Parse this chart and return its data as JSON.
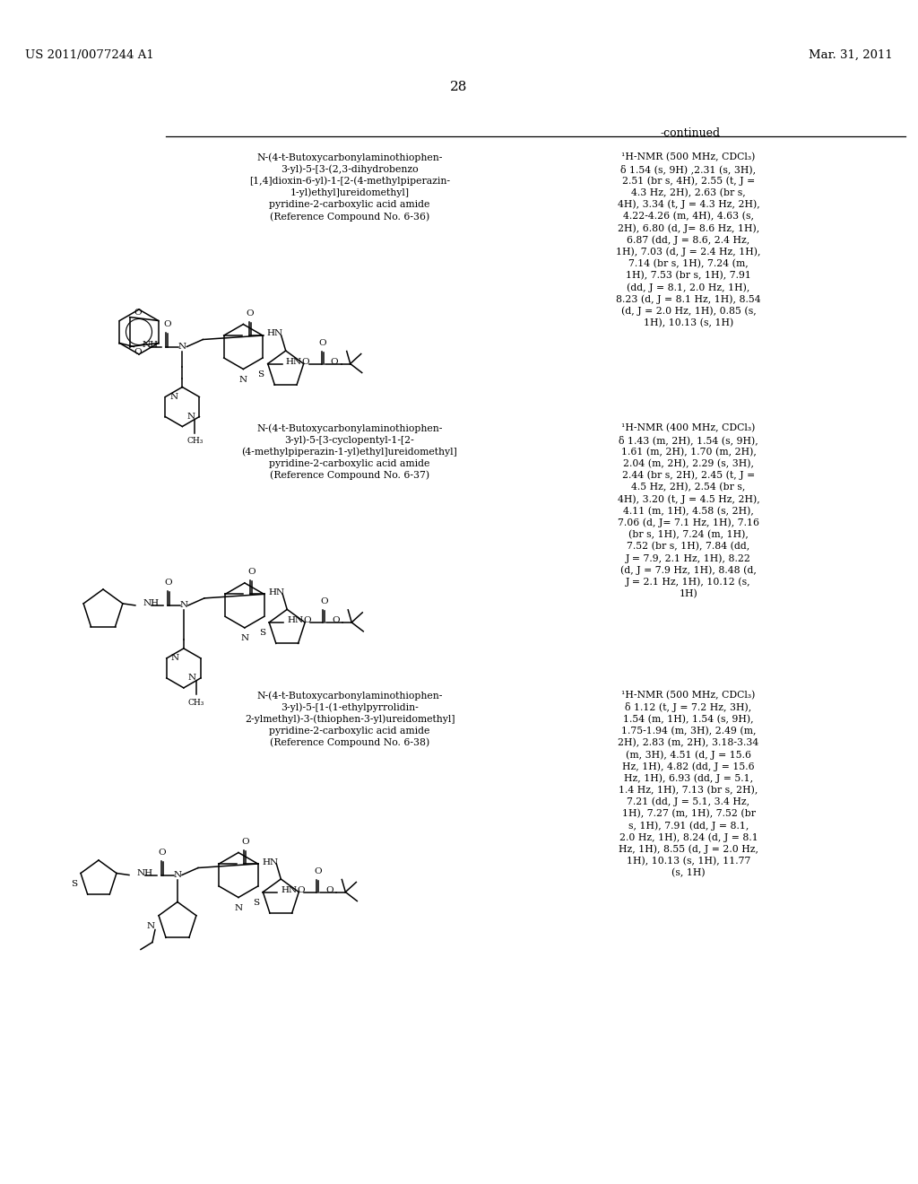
{
  "background_color": "#ffffff",
  "page_number": "28",
  "header_left": "US 2011/0077244 A1",
  "header_right": "Mar. 31, 2011",
  "continued_label": "-continued",
  "compound1_name": [
    "N-(4-t-Butoxycarbonylaminothiophen-",
    "3-yl)-5-[3-(2,3-dihydrobenzo",
    "[1,4]dioxin-6-yl)-1-[2-(4-methylpiperazin-",
    "1-yl)ethyl]ureidomethyl]",
    "pyridine-2-carboxylic acid amide",
    "(Reference Compound No. 6-36)"
  ],
  "compound1_nmr": [
    "¹H-NMR (500 MHz, CDCl₃)",
    "δ 1.54 (s, 9H) ,2.31 (s, 3H),",
    "2.51 (br s, 4H), 2.55 (t, J =",
    "4.3 Hz, 2H), 2.63 (br s,",
    "4H), 3.34 (t, J = 4.3 Hz, 2H),",
    "4.22-4.26 (m, 4H), 4.63 (s,",
    "2H), 6.80 (d, J= 8.6 Hz, 1H),",
    "6.87 (dd, J = 8.6, 2.4 Hz,",
    "1H), 7.03 (d, J = 2.4 Hz, 1H),",
    "7.14 (br s, 1H), 7.24 (m,",
    "1H), 7.53 (br s, 1H), 7.91",
    "(dd, J = 8.1, 2.0 Hz, 1H),",
    "8.23 (d, J = 8.1 Hz, 1H), 8.54",
    "(d, J = 2.0 Hz, 1H), 0.85 (s,",
    "1H), 10.13 (s, 1H)"
  ],
  "compound2_name": [
    "N-(4-t-Butoxycarbonylaminothiophen-",
    "3-yl)-5-[3-cyclopentyl-1-[2-",
    "(4-methylpiperazin-1-yl)ethyl]ureidomethyl]",
    "pyridine-2-carboxylic acid amide",
    "(Reference Compound No. 6-37)"
  ],
  "compound2_nmr": [
    "¹H-NMR (400 MHz, CDCl₃)",
    "δ 1.43 (m, 2H), 1.54 (s, 9H),",
    "1.61 (m, 2H), 1.70 (m, 2H),",
    "2.04 (m, 2H), 2.29 (s, 3H),",
    "2.44 (br s, 2H), 2.45 (t, J =",
    "4.5 Hz, 2H), 2.54 (br s,",
    "4H), 3.20 (t, J = 4.5 Hz, 2H),",
    "4.11 (m, 1H), 4.58 (s, 2H),",
    "7.06 (d, J= 7.1 Hz, 1H), 7.16",
    "(br s, 1H), 7.24 (m, 1H),",
    "7.52 (br s, 1H), 7.84 (dd,",
    "J = 7.9, 2.1 Hz, 1H), 8.22",
    "(d, J = 7.9 Hz, 1H), 8.48 (d,",
    "J = 2.1 Hz, 1H), 10.12 (s,",
    "1H)"
  ],
  "compound3_name": [
    "N-(4-t-Butoxycarbonylaminothiophen-",
    "3-yl)-5-[1-(1-ethylpyrrolidin-",
    "2-ylmethyl)-3-(thiophen-3-yl)ureidomethyl]",
    "pyridine-2-carboxylic acid amide",
    "(Reference Compound No. 6-38)"
  ],
  "compound3_nmr": [
    "¹H-NMR (500 MHz, CDCl₃)",
    "δ 1.12 (t, J = 7.2 Hz, 3H),",
    "1.54 (m, 1H), 1.54 (s, 9H),",
    "1.75-1.94 (m, 3H), 2.49 (m,",
    "2H), 2.83 (m, 2H), 3.18-3.34",
    "(m, 3H), 4.51 (d, J = 15.6",
    "Hz, 1H), 4.82 (dd, J = 15.6",
    "Hz, 1H), 6.93 (dd, J = 5.1,",
    "1.4 Hz, 1H), 7.13 (br s, 2H),",
    "7.21 (dd, J = 5.1, 3.4 Hz,",
    "1H), 7.27 (m, 1H), 7.52 (br",
    "s, 1H), 7.91 (dd, J = 8.1,",
    "2.0 Hz, 1H), 8.24 (d, J = 8.1",
    "Hz, 1H), 8.55 (d, J = 2.0 Hz,",
    "1H), 10.13 (s, 1H), 11.77",
    "(s, 1H)"
  ]
}
